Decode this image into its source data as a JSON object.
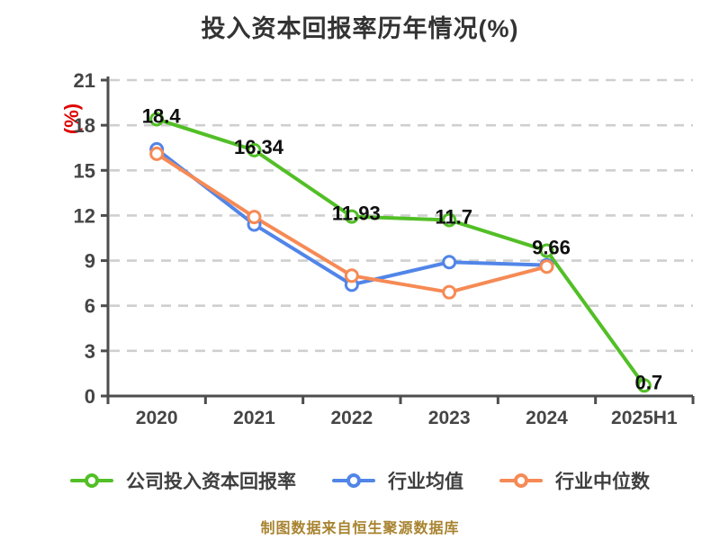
{
  "title": "投入资本回报率历年情况(%)",
  "y_axis_unit": "(%)",
  "caption": "制图数据来自恒生聚源数据库",
  "colors": {
    "background": "#ffffff",
    "title": "#333333",
    "caption": "#a8832f",
    "y_unit": "#e00000",
    "axis": "#4d4d4d",
    "grid": "#cfcfcf",
    "tick_label": "#454545",
    "data_label": "#0f0f0f",
    "legend_label": "#3f3f3f",
    "company": "#52bf26",
    "industry_mean": "#5185e8",
    "industry_median": "#f68a55"
  },
  "chart_data": {
    "type": "line",
    "title": "投入资本回报率历年情况(%)",
    "xlabel": "",
    "ylabel": "(%)",
    "categories": [
      "2020",
      "2021",
      "2022",
      "2023",
      "2024",
      "2025H1"
    ],
    "series": [
      {
        "name": "公司投入资本回报率",
        "color_key": "company",
        "values": [
          18.4,
          16.34,
          11.93,
          11.7,
          9.66,
          0.7
        ],
        "point_labels": [
          "18.4",
          "16.34",
          "11.93",
          "11.7",
          "9.66",
          "0.7"
        ]
      },
      {
        "name": "行业均值",
        "color_key": "industry_mean",
        "values": [
          16.4,
          11.4,
          7.4,
          8.9,
          8.7,
          null
        ],
        "point_labels": null
      },
      {
        "name": "行业中位数",
        "color_key": "industry_median",
        "values": [
          16.1,
          11.9,
          8.0,
          6.9,
          8.6,
          null
        ],
        "point_labels": null
      }
    ],
    "ylim": [
      0,
      21
    ],
    "y_ticks": [
      0,
      3,
      6,
      9,
      12,
      15,
      18,
      21
    ],
    "grid": true,
    "grid_style": "dashed",
    "legend_position": "bottom",
    "marker": "circle-white-fill"
  }
}
